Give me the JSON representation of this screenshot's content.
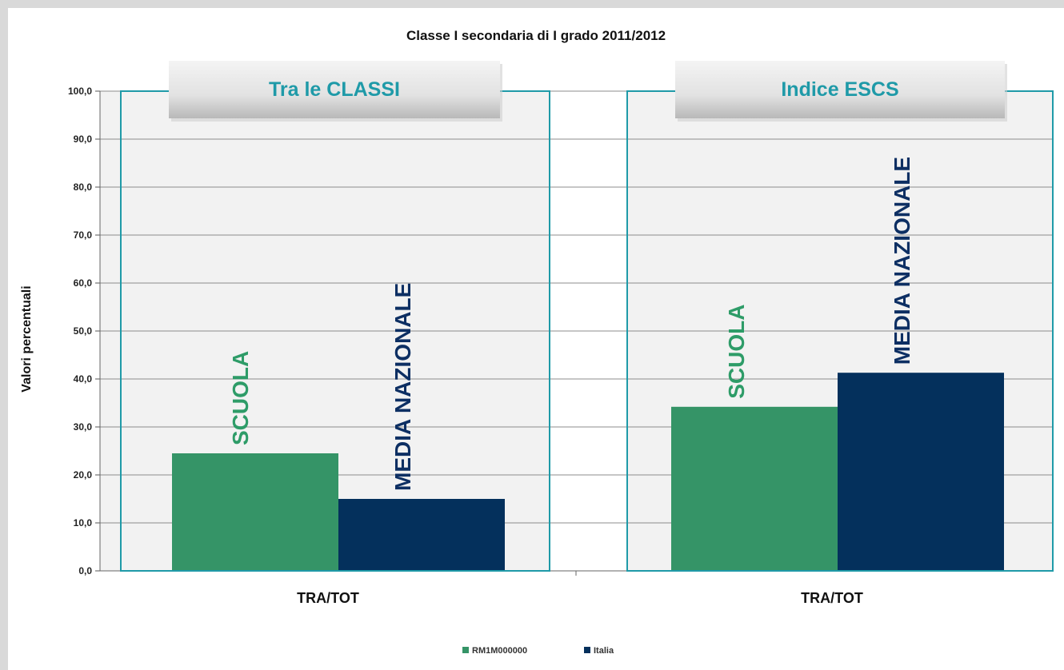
{
  "chart_data": {
    "type": "bar",
    "title": "Classe I secondaria di I grado 2011/2012",
    "ylabel": "Valori percentuali",
    "ylim": [
      0,
      100
    ],
    "yticks": [
      "0,0",
      "10,0",
      "20,0",
      "30,0",
      "40,0",
      "50,0",
      "60,0",
      "70,0",
      "80,0",
      "90,0",
      "100,0"
    ],
    "grid": true,
    "legend_placement": "bottom",
    "series": [
      {
        "name": "RM1M000000",
        "color": "#359467"
      },
      {
        "name": "Italia",
        "color": "#04305c"
      }
    ],
    "panels": [
      {
        "header": "Tra le CLASSI",
        "category": "TRA/TOT",
        "bars": [
          {
            "label": "SCUOLA",
            "value": 24.5,
            "series": 0
          },
          {
            "label": "MEDIA NAZIONALE",
            "value": 15.0,
            "series": 1
          }
        ]
      },
      {
        "header": "Indice ESCS",
        "category": "TRA/TOT",
        "bars": [
          {
            "label": "SCUOLA",
            "value": 34.2,
            "series": 0
          },
          {
            "label": "MEDIA NAZIONALE",
            "value": 41.3,
            "series": 1
          }
        ]
      }
    ],
    "colors": {
      "panel_border": "#1f9aa8",
      "plot_bg": "#f2f2f2",
      "scuola_label": "#2e9c68",
      "media_label": "#0d2f63",
      "header_text": "#1f9aa8"
    }
  }
}
